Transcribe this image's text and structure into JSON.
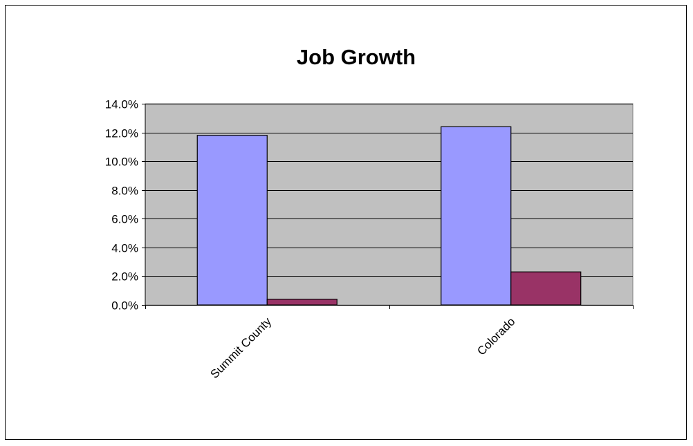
{
  "chart_data": {
    "type": "bar",
    "title": "Job Growth",
    "xlabel": "",
    "ylabel": "",
    "categories": [
      "Summit County",
      "Colorado"
    ],
    "series": [
      {
        "values": [
          0.118,
          0.124
        ],
        "color": "#9999ff"
      },
      {
        "values": [
          0.004,
          0.023
        ],
        "color": "#993366"
      }
    ],
    "ylim": [
      0,
      0.14
    ],
    "yticks": [
      0,
      0.02,
      0.04,
      0.06,
      0.08,
      0.1,
      0.12,
      0.14
    ],
    "ytick_labels": [
      "0.0%",
      "2.0%",
      "4.0%",
      "6.0%",
      "8.0%",
      "10.0%",
      "12.0%",
      "14.0%"
    ],
    "plot_background": "#c0c0c0",
    "grid": true,
    "legend": "none"
  }
}
